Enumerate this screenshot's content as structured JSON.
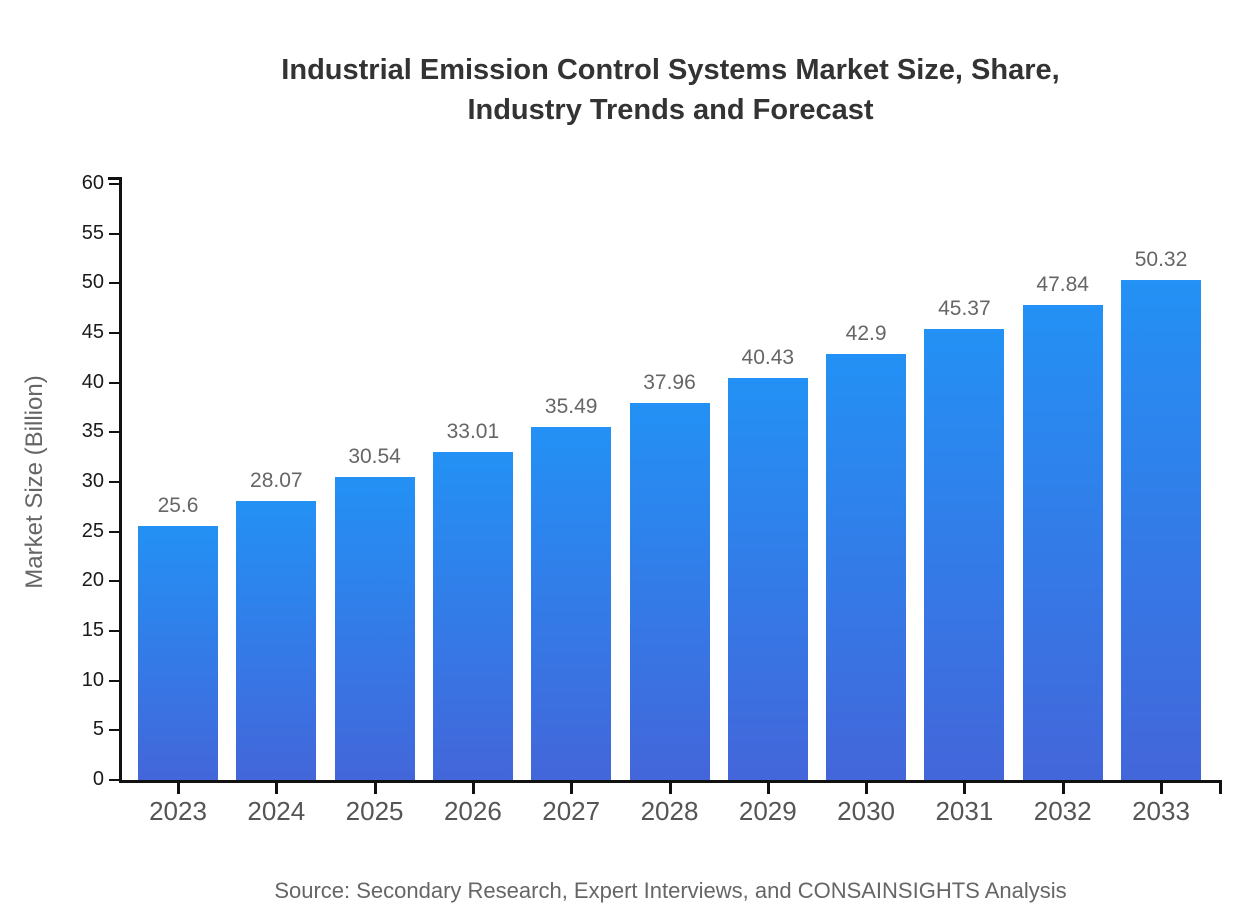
{
  "chart_data": {
    "type": "bar",
    "title": "Industrial Emission Control Systems Market Size, Share, Industry Trends and Forecast",
    "title_display": "Industrial Emission Control Systems Market Size, Share,\nIndustry Trends and Forecast",
    "categories": [
      "2023",
      "2024",
      "2025",
      "2026",
      "2027",
      "2028",
      "2029",
      "2030",
      "2031",
      "2032",
      "2033"
    ],
    "values": [
      25.6,
      28.07,
      30.54,
      33.01,
      35.49,
      37.96,
      40.43,
      42.9,
      45.37,
      47.84,
      50.32
    ],
    "value_labels": [
      "25.6",
      "28.07",
      "30.54",
      "33.01",
      "35.49",
      "37.96",
      "40.43",
      "42.9",
      "45.37",
      "47.84",
      "50.32"
    ],
    "xlabel": "",
    "ylabel": "Market Size (Billion)",
    "ylim": [
      0,
      60
    ],
    "ytick_step": 5,
    "yticks": [
      0,
      5,
      10,
      15,
      20,
      25,
      30,
      35,
      40,
      45,
      50,
      55,
      60
    ],
    "grid": false,
    "legend": false,
    "value_labels_shown": true,
    "colors": {
      "bar_gradient_top": "#2391f5",
      "bar_gradient_bottom": "#4366da",
      "axis": "#111111",
      "ytick_label": "#1a1a1a",
      "xtick_label": "#555555",
      "value_label": "#666666",
      "title": "#333333",
      "ylabel": "#666666",
      "source": "#666666",
      "background": "#ffffff"
    }
  },
  "footer": {
    "source": "Source: Secondary Research, Expert Interviews, and CONSAINSIGHTS Analysis"
  }
}
